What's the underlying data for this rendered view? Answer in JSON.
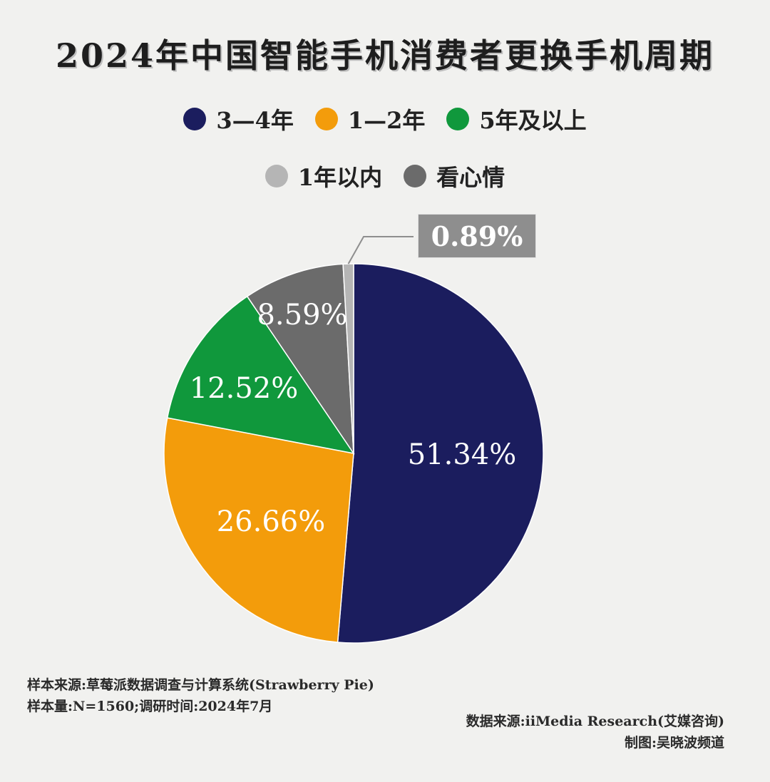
{
  "title": "2024年中国智能手机消费者更换手机周期",
  "legend_row1": [
    {
      "label": "3—4年",
      "color": "#1b1d5e"
    },
    {
      "label": "1—2年",
      "color": "#f39c0b"
    },
    {
      "label": "5年及以上",
      "color": "#10983c"
    }
  ],
  "legend_row2": [
    {
      "label": "1年以内",
      "color": "#b5b5b5"
    },
    {
      "label": "看心情",
      "color": "#6b6b6b"
    }
  ],
  "chart_data": {
    "type": "pie",
    "title": "2024年中国智能手机消费者更换手机周期",
    "start": "12 o'clock, clockwise",
    "slices": [
      {
        "label": "3—4年",
        "value": 51.34,
        "display": "51.34%",
        "color": "#1b1d5e"
      },
      {
        "label": "1—2年",
        "value": 26.66,
        "display": "26.66%",
        "color": "#f39c0b"
      },
      {
        "label": "5年及以上",
        "value": 12.52,
        "display": "12.52%",
        "color": "#10983c"
      },
      {
        "label": "看心情",
        "value": 8.59,
        "display": "8.59%",
        "color": "#6b6b6b"
      },
      {
        "label": "1年以内",
        "value": 0.89,
        "display": "0.89%",
        "color": "#b5b5b5"
      }
    ]
  },
  "footnotes": {
    "sample_source": "样本来源:草莓派数据调查与计算系统(Strawberry Pie)",
    "sample_size": "样本量:N=1560;调研时间:2024年7月",
    "data_source": "数据来源:iiMedia Research(艾媒咨询)",
    "credit": "制图:吴晓波频道"
  }
}
